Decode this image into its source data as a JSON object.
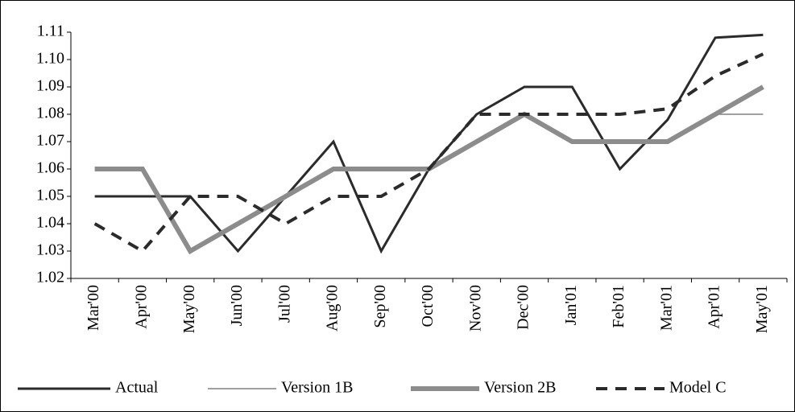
{
  "chart_data": {
    "type": "line",
    "categories": [
      "Mar'00",
      "Apr'00",
      "May'00",
      "Jun'00",
      "Jul'00",
      "Aug'00",
      "Sep'00",
      "Oct'00",
      "Nov'00",
      "Dec'00",
      "Jan'01",
      "Feb'01",
      "Mar'01",
      "Apr'01",
      "May'01"
    ],
    "series": [
      {
        "name": "Actual",
        "color": "#2b2b2b",
        "values": [
          1.05,
          1.05,
          1.05,
          1.03,
          1.05,
          1.07,
          1.03,
          1.06,
          1.08,
          1.09,
          1.09,
          1.06,
          1.078,
          1.108,
          1.109
        ]
      },
      {
        "name": "Version 1B",
        "color": "#808080",
        "values": [
          1.06,
          1.06,
          1.03,
          1.04,
          1.05,
          1.06,
          1.06,
          1.06,
          1.07,
          1.08,
          1.07,
          1.07,
          1.07,
          1.08,
          1.08
        ]
      },
      {
        "name": "Version 2B",
        "color": "#8c8c8c",
        "values": [
          1.06,
          1.06,
          1.03,
          1.04,
          1.05,
          1.06,
          1.06,
          1.06,
          1.07,
          1.08,
          1.07,
          1.07,
          1.07,
          1.08,
          1.09
        ]
      },
      {
        "name": "Model C",
        "color": "#2b2b2b",
        "dashed": true,
        "values": [
          1.04,
          1.03,
          1.05,
          1.05,
          1.04,
          1.05,
          1.05,
          1.06,
          1.08,
          1.08,
          1.08,
          1.08,
          1.082,
          1.094,
          1.102
        ]
      }
    ],
    "ylim": [
      1.02,
      1.11
    ],
    "yticks": [
      1.02,
      1.03,
      1.04,
      1.05,
      1.06,
      1.07,
      1.08,
      1.09,
      {
        "value": 1.1,
        "label": "1.10"
      },
      1.11
    ],
    "grid": false,
    "legend": "bottom"
  }
}
